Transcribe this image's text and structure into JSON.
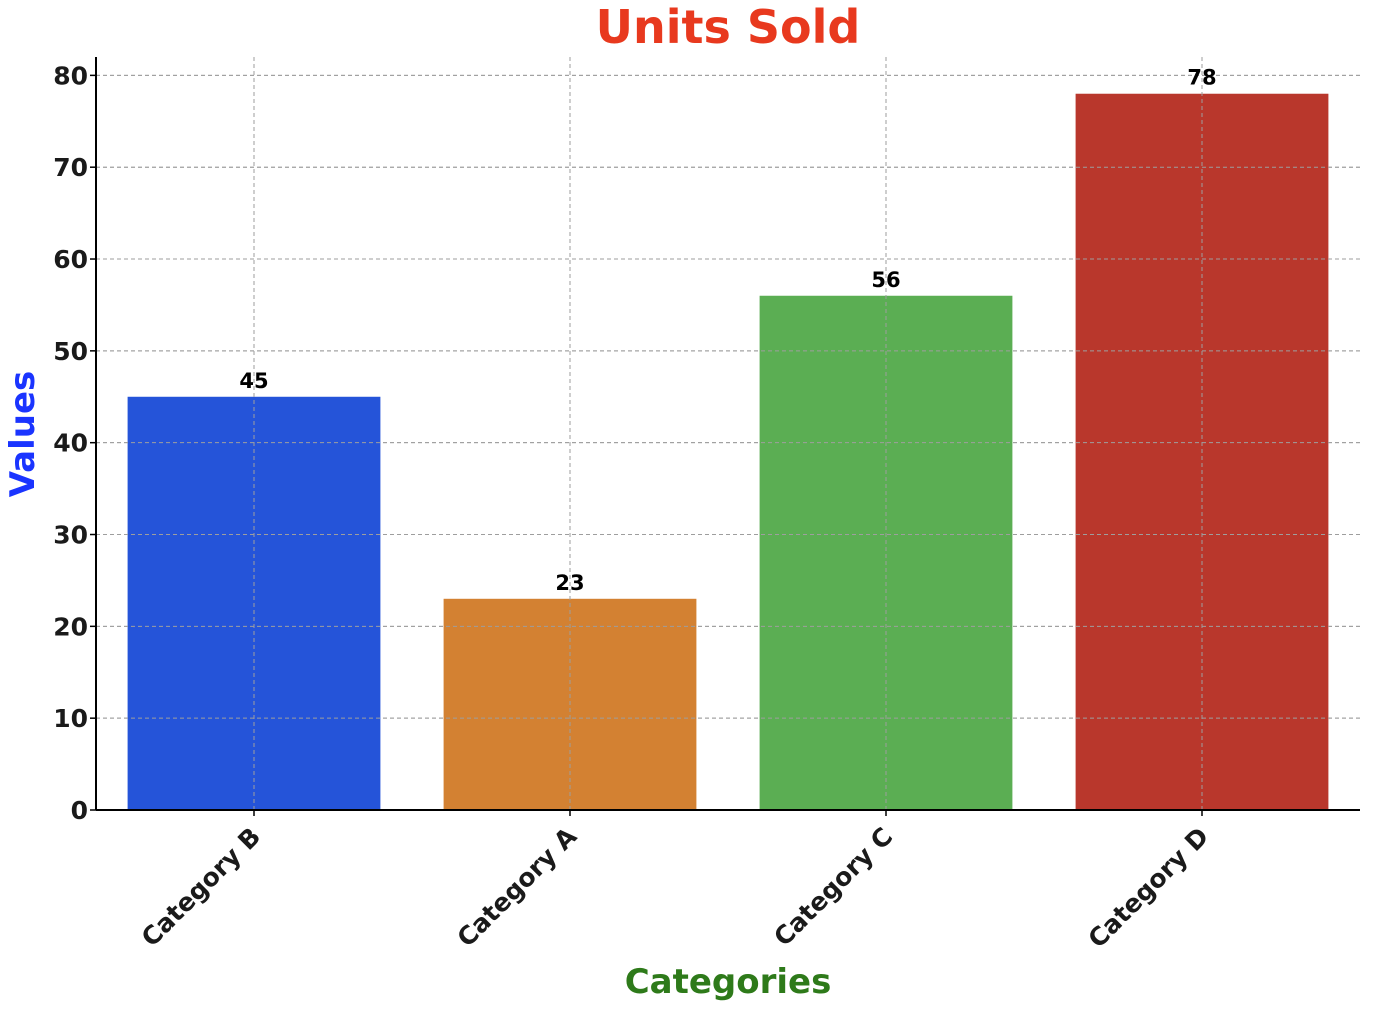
{
  "chart_data": {
    "type": "bar",
    "title": "Units Sold",
    "xlabel": "Categories",
    "ylabel": "Values",
    "categories": [
      "Category B",
      "Category A",
      "Category C",
      "Category D"
    ],
    "values": [
      45,
      23,
      56,
      78
    ],
    "data_labels": [
      "45",
      "23",
      "56",
      "78"
    ],
    "ylim": [
      0,
      82
    ],
    "yticks": [
      0,
      10,
      20,
      30,
      40,
      50,
      60,
      70,
      80
    ],
    "ytick_labels": [
      "0",
      "10",
      "20",
      "30",
      "40",
      "50",
      "60",
      "70",
      "80"
    ],
    "grid": true,
    "legend": "none",
    "bar_colors": [
      "#2554d9",
      "#d38132",
      "#5bae53",
      "#b9372c"
    ],
    "title_color": "#e8391e",
    "xlabel_color": "#2e7a1a",
    "ylabel_color": "#1a34ff"
  }
}
